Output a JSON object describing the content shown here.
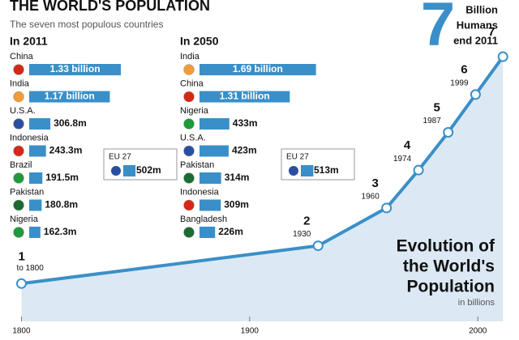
{
  "header": {
    "title": "THE WORLD'S POPULATION",
    "subtitle": "The seven most populous countries"
  },
  "callout": {
    "number": 7,
    "lines": [
      "Billion",
      "Humans",
      "end 2011"
    ]
  },
  "chart_data": [
    {
      "type": "bar",
      "orientation": "horizontal",
      "title": "In 2011",
      "categories": [
        "China",
        "India",
        "U.S.A.",
        "Indonesia",
        "Brazil",
        "Pakistan",
        "Nigeria"
      ],
      "values": [
        1330,
        1170,
        306.8,
        243.3,
        191.5,
        180.8,
        162.3
      ],
      "value_labels": [
        "1.33 billion",
        "1.17 billion",
        "306.8m",
        "243.3m",
        "191.5m",
        "180.8m",
        "162.3m"
      ],
      "color": "#3a8fc8",
      "annotation": {
        "label": "EU 27",
        "value": 502,
        "value_label": "502m"
      }
    },
    {
      "type": "bar",
      "orientation": "horizontal",
      "title": "In 2050",
      "categories": [
        "India",
        "China",
        "Nigeria",
        "U.S.A.",
        "Pakistan",
        "Indonesia",
        "Bangladesh"
      ],
      "values": [
        1690,
        1310,
        433,
        423,
        314,
        309,
        226
      ],
      "value_labels": [
        "1.69 billion",
        "1.31 billion",
        "433m",
        "423m",
        "314m",
        "309m",
        "226m"
      ],
      "color": "#3a8fc8",
      "annotation": {
        "label": "EU 27",
        "value": 513,
        "value_label": "513m"
      }
    },
    {
      "type": "line",
      "title": [
        "Evolution of",
        "the World's",
        "Population"
      ],
      "subtitle": "in billions",
      "x": [
        1800,
        1930,
        1960,
        1974,
        1987,
        1999,
        2011
      ],
      "values": [
        1,
        2,
        3,
        4,
        5,
        6,
        7
      ],
      "first_note": "to 1800",
      "xlim": [
        1797,
        2012
      ],
      "ylim": [
        0,
        8.5
      ],
      "xticks": [
        1800,
        1900,
        2000
      ],
      "color": "#3a8fc8",
      "fill": "#dce9f5"
    }
  ]
}
